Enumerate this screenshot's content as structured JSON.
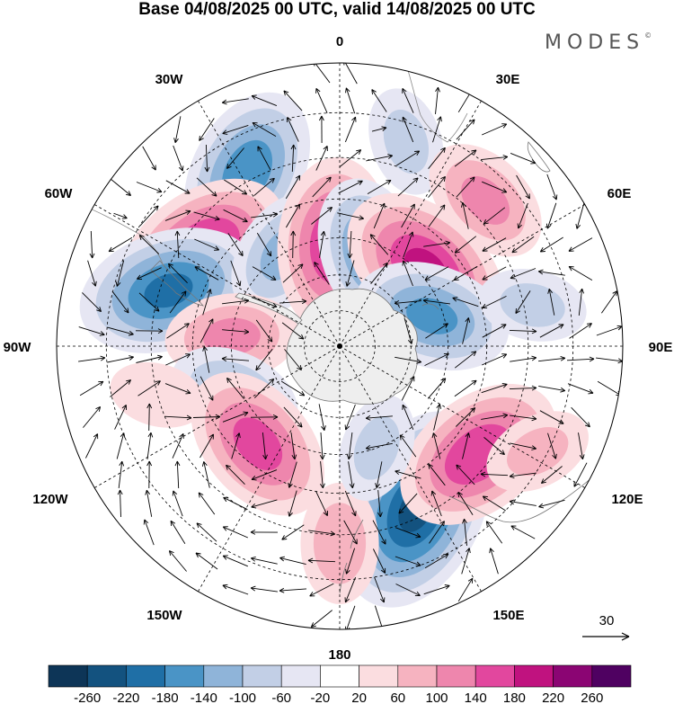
{
  "title": "Base 04/08/2025 00 UTC, valid 14/08/2025 00 UTC",
  "brand": "MODES",
  "brand_mark": "©",
  "projection": "south-polar-stereographic",
  "longitude_labels": [
    "0",
    "30E",
    "60E",
    "90E",
    "120E",
    "150E",
    "180",
    "150W",
    "120W",
    "90W",
    "60W",
    "30W"
  ],
  "reference_vector": {
    "label": "30"
  },
  "colorbar": {
    "tick_labels": [
      "-260",
      "-220",
      "-180",
      "-140",
      "-100",
      "-60",
      "-20",
      "20",
      "60",
      "100",
      "140",
      "180",
      "220",
      "260"
    ],
    "colors": [
      "#0d3557",
      "#13527f",
      "#1f6fa6",
      "#4a94c6",
      "#8fb4d9",
      "#c2cfe6",
      "#e6e6f3",
      "#ffffff",
      "#fbdde0",
      "#f6b3c0",
      "#ee86ad",
      "#e2479e",
      "#c0127f",
      "#8b0573",
      "#4f0161"
    ]
  },
  "chart_data": {
    "type": "heatmap",
    "title": "Base 04/08/2025 00 UTC, valid 14/08/2025 00 UTC",
    "legend": "bottom",
    "value_range": [
      -260,
      260
    ],
    "contour_levels": [
      -260,
      -220,
      -180,
      -140,
      -100,
      -60,
      -20,
      20,
      60,
      100,
      140,
      180,
      220,
      260
    ],
    "anomaly_centers": [
      {
        "lon": -28,
        "lat": -38,
        "value": -160
      },
      {
        "lon": -55,
        "lat": -45,
        "value": 180
      },
      {
        "lon": -72,
        "lat": -42,
        "value": -180
      },
      {
        "lon": -32,
        "lat": -60,
        "value": -100
      },
      {
        "lon": -3,
        "lat": -62,
        "value": 170
      },
      {
        "lon": 20,
        "lat": -63,
        "value": -140
      },
      {
        "lon": 18,
        "lat": -34,
        "value": -60
      },
      {
        "lon": 45,
        "lat": -36,
        "value": 100
      },
      {
        "lon": 48,
        "lat": -58,
        "value": 180
      },
      {
        "lon": 72,
        "lat": -63,
        "value": -140
      },
      {
        "lon": 78,
        "lat": -38,
        "value": -60
      },
      {
        "lon": -85,
        "lat": -60,
        "value": 100
      },
      {
        "lon": -115,
        "lat": -58,
        "value": -100
      },
      {
        "lon": -140,
        "lat": -55,
        "value": 150
      },
      {
        "lon": 155,
        "lat": -42,
        "value": -220
      },
      {
        "lon": 128,
        "lat": -43,
        "value": 170
      },
      {
        "lon": 118,
        "lat": -32,
        "value": 60
      },
      {
        "lon": -180,
        "lat": -38,
        "value": 80
      },
      {
        "lon": -105,
        "lat": -40,
        "value": 40
      },
      {
        "lon": 160,
        "lat": -60,
        "value": -60
      }
    ]
  }
}
